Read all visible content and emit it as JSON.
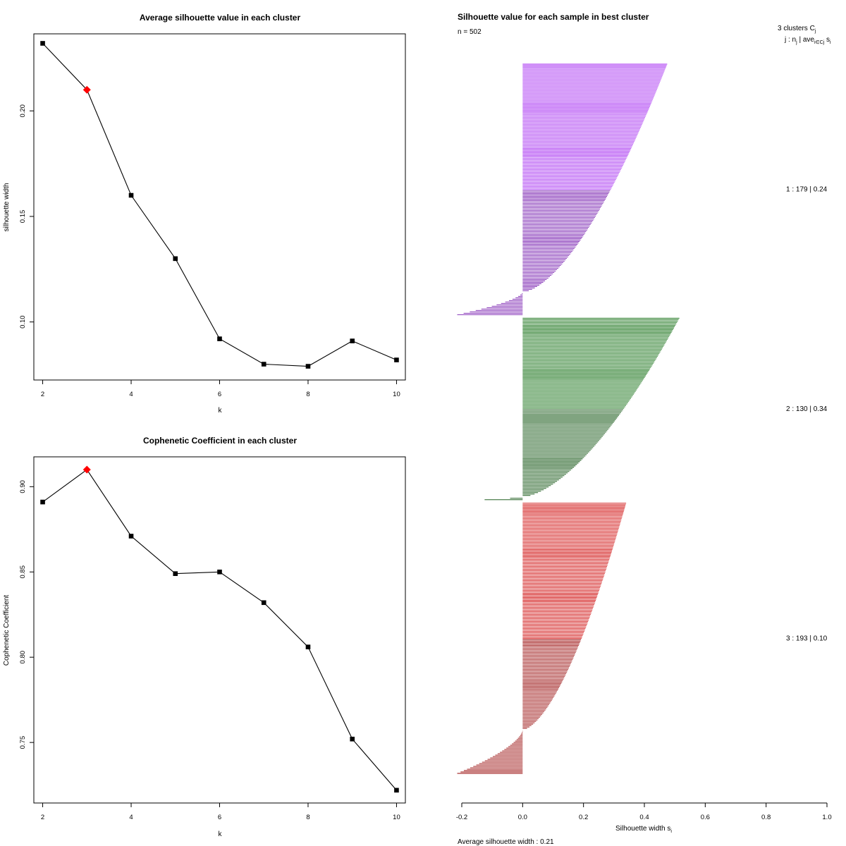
{
  "chart_data": [
    {
      "type": "line",
      "title": "Average silhouette value in each cluster",
      "xlabel": "k",
      "ylabel": "silhouette width",
      "x": [
        2,
        3,
        4,
        5,
        6,
        7,
        8,
        9,
        10
      ],
      "values": [
        0.232,
        0.21,
        0.16,
        0.13,
        0.092,
        0.08,
        0.079,
        0.091,
        0.082
      ],
      "highlight_index": 1,
      "xlim": [
        1.8,
        10.2
      ],
      "ylim": [
        0.0725,
        0.2365
      ],
      "xticks": [
        "2",
        "4",
        "6",
        "8",
        "10"
      ],
      "yticks": [
        "0.10",
        "0.15",
        "0.20"
      ],
      "colors": {
        "line": "#000000",
        "highlight": "#ff0000"
      }
    },
    {
      "type": "line",
      "title": "Cophenetic Coefficient in each cluster",
      "xlabel": "k",
      "ylabel": "Cophenetic Coefficient",
      "x": [
        2,
        3,
        4,
        5,
        6,
        7,
        8,
        9,
        10
      ],
      "values": [
        0.891,
        0.91,
        0.871,
        0.849,
        0.85,
        0.832,
        0.806,
        0.752,
        0.722
      ],
      "highlight_index": 1,
      "xlim": [
        1.8,
        10.2
      ],
      "ylim": [
        0.7145,
        0.9175
      ],
      "xticks": [
        "2",
        "4",
        "6",
        "8",
        "10"
      ],
      "yticks": [
        "0.75",
        "0.80",
        "0.85",
        "0.90"
      ],
      "colors": {
        "line": "#000000",
        "highlight": "#ff0000"
      }
    },
    {
      "type": "bar",
      "orientation": "horizontal",
      "title": "Silhouette value for each sample in best cluster",
      "n_label": "n = 502",
      "header": "3  clusters  C",
      "header_sub": "j",
      "header2": "j :  n",
      "header2_sub": "j",
      "header2_mid": " | ave",
      "header2_sub2": "i∈Cj",
      "header2_tail": "  s",
      "header2_sub3": "i",
      "xlabel": "Silhouette width  s",
      "xlabel_sub": "i",
      "xlim": [
        -0.2,
        1.0
      ],
      "xticks": [
        "-0.2",
        "0.0",
        "0.2",
        "0.4",
        "0.6",
        "0.8",
        "1.0"
      ],
      "average_label": "Average silhouette width :  0.21",
      "clusters": [
        {
          "id": 1,
          "label": "1 :   179  |  0.24",
          "n": 179,
          "max": 0.475,
          "min": -0.215,
          "negative_count": 16,
          "color": "#a020f0"
        },
        {
          "id": 2,
          "label": "2 :   130  |  0.34",
          "n": 130,
          "max": 0.515,
          "min": -0.125,
          "negative_count": 2,
          "color": "#006400"
        },
        {
          "id": 3,
          "label": "3 :   193  |  0.10",
          "n": 193,
          "max": 0.34,
          "min": -0.215,
          "negative_count": 31,
          "color": "#cd0000"
        }
      ]
    }
  ]
}
